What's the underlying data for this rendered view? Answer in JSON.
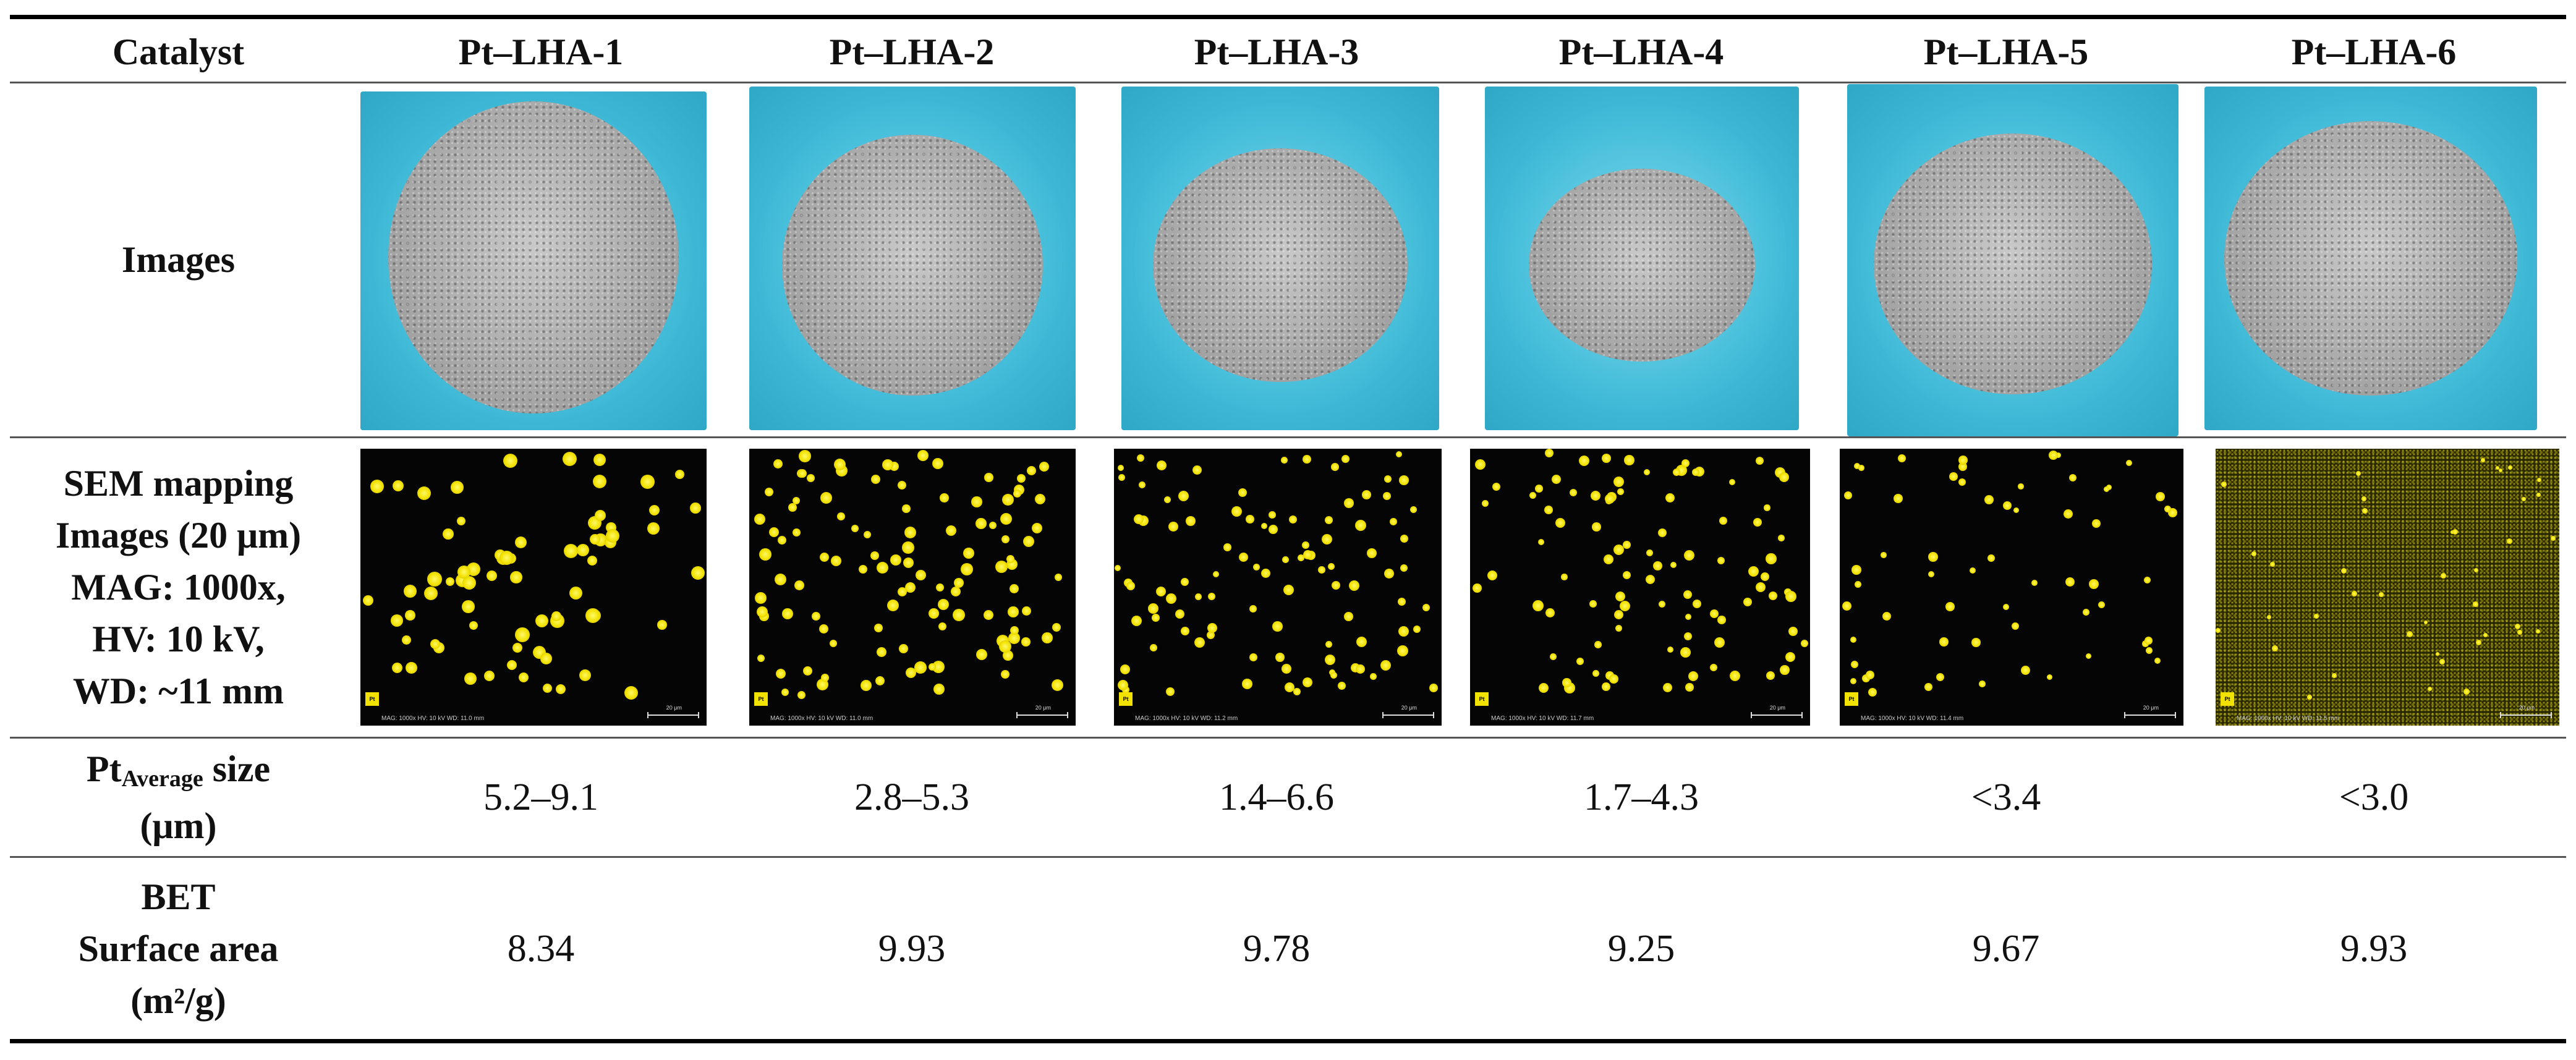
{
  "table": {
    "header_label": "Catalyst",
    "catalysts": [
      "Pt–LHA-1",
      "Pt–LHA-2",
      "Pt–LHA-3",
      "Pt–LHA-4",
      "Pt–LHA-5",
      "Pt–LHA-6"
    ],
    "rows": {
      "images": {
        "label": "Images"
      },
      "sem": {
        "label_lines": [
          "SEM mapping",
          "Images (20 μm)",
          "MAG: 1000x,",
          "HV: 10 kV,",
          "WD: ~11 mm"
        ],
        "element_tag": "Pt",
        "scale_label": "20 μm",
        "info_lines": [
          "MAG: 1000x   HV: 10 kV   WD: 11.0 mm",
          "MAG: 1000x   HV: 10 kV   WD: 11.0 mm",
          "MAG: 1000x   HV: 10 kV   WD: 11.2 mm",
          "MAG: 1000x   HV: 10 kV   WD: 11.7 mm",
          "MAG: 1000x   HV: 10 kV   WD: 11.4 mm",
          "MAG: 1000x   HV: 10 kV   WD: 11.5 mm"
        ]
      },
      "pt_size": {
        "label_main": "Pt",
        "label_sub": "Average",
        "label_after": " size",
        "label_unit": "(μm)",
        "values": [
          "5.2–9.1",
          "2.8–5.3",
          "1.4–6.6",
          "1.7–4.3",
          "<3.4",
          "<3.0"
        ]
      },
      "bet": {
        "label_lines": [
          "BET",
          "Surface area",
          "(m²/g)"
        ],
        "values": [
          "8.34",
          "9.93",
          "9.78",
          "9.25",
          "9.67",
          "9.93"
        ]
      }
    }
  }
}
